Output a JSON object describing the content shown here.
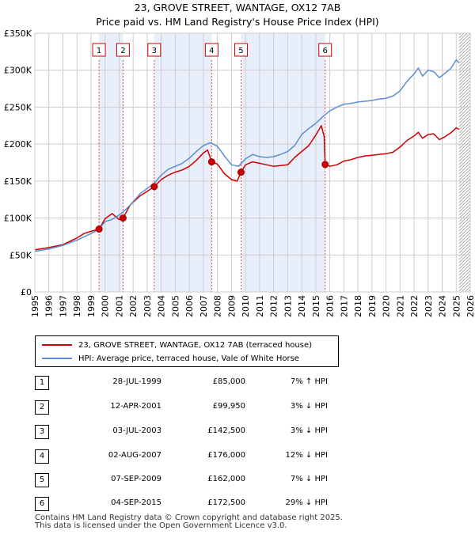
{
  "chart_data": {
    "type": "line",
    "title": "23, GROVE STREET, WANTAGE, OX12 7AB",
    "subtitle": "Price paid vs. HM Land Registry's House Price Index (HPI)",
    "ylim": [
      0,
      350000
    ],
    "xlim": [
      1995,
      2026
    ],
    "y_ticks": [
      0,
      50000,
      100000,
      150000,
      200000,
      250000,
      300000,
      350000
    ],
    "y_tick_labels": [
      "£0",
      "£50K",
      "£100K",
      "£150K",
      "£200K",
      "£250K",
      "£300K",
      "£350K"
    ],
    "x_ticks": [
      1995,
      1996,
      1997,
      1998,
      1999,
      2000,
      2001,
      2002,
      2003,
      2004,
      2005,
      2006,
      2007,
      2008,
      2009,
      2010,
      2011,
      2012,
      2013,
      2014,
      2015,
      2016,
      2017,
      2018,
      2019,
      2020,
      2021,
      2022,
      2023,
      2024,
      2025,
      2026
    ],
    "x_tick_labels": [
      "1995",
      "1996",
      "1997",
      "1998",
      "1999",
      "2000",
      "2001",
      "2002",
      "2003",
      "2004",
      "2005",
      "2006",
      "2007",
      "2008",
      "2009",
      "2010",
      "2011",
      "2012",
      "2013",
      "2014",
      "2015",
      "2016",
      "2017",
      "2018",
      "2019",
      "2020",
      "2021",
      "2022",
      "2023",
      "2024",
      "2025",
      "2026"
    ],
    "grid": true,
    "data_end_year": 2025.2,
    "series": [
      {
        "name": "23, GROVE STREET, WANTAGE, OX12 7AB (terraced house)",
        "color": "#cc0000",
        "x": [
          1995.0,
          1996.0,
          1997.0,
          1998.0,
          1998.5,
          1999.0,
          1999.57,
          2000.0,
          2000.5,
          2001.0,
          2001.28,
          2001.8,
          2002.5,
          2003.0,
          2003.5,
          2004.0,
          2004.5,
          2005.0,
          2005.5,
          2006.0,
          2006.5,
          2007.0,
          2007.3,
          2007.59,
          2008.0,
          2008.5,
          2009.0,
          2009.4,
          2009.68,
          2010.0,
          2010.5,
          2011.0,
          2011.5,
          2012.0,
          2012.5,
          2013.0,
          2013.5,
          2014.0,
          2014.5,
          2015.0,
          2015.4,
          2015.6,
          2015.67,
          2016.0,
          2016.5,
          2017.0,
          2017.5,
          2018.0,
          2018.5,
          2019.0,
          2019.5,
          2020.0,
          2020.5,
          2021.0,
          2021.5,
          2022.0,
          2022.3,
          2022.6,
          2023.0,
          2023.4,
          2023.8,
          2024.2,
          2024.6,
          2025.0,
          2025.2
        ],
        "values": [
          57000,
          60000,
          64000,
          73000,
          79000,
          82000,
          85000,
          99000,
          106000,
          98000,
          99950,
          118000,
          130000,
          136000,
          142500,
          152000,
          158000,
          162000,
          165000,
          170000,
          178000,
          188000,
          192000,
          176000,
          173000,
          160000,
          152000,
          150000,
          162000,
          172000,
          176000,
          174000,
          172000,
          170000,
          171000,
          172000,
          182000,
          190000,
          198000,
          212000,
          225000,
          210000,
          172500,
          170000,
          172000,
          177000,
          179000,
          182000,
          184000,
          185000,
          186000,
          187000,
          189000,
          196000,
          205000,
          211000,
          216000,
          208000,
          213000,
          214000,
          206000,
          210000,
          215000,
          222000,
          220000
        ]
      },
      {
        "name": "HPI: Average price, terraced house, Vale of White Horse",
        "color": "#5b8fd1",
        "x": [
          1995.0,
          1996.0,
          1997.0,
          1998.0,
          1999.0,
          1999.57,
          2000.0,
          2000.5,
          2001.0,
          2001.5,
          2002.0,
          2002.5,
          2003.0,
          2003.5,
          2004.0,
          2004.5,
          2005.0,
          2005.5,
          2006.0,
          2006.5,
          2007.0,
          2007.5,
          2008.0,
          2008.5,
          2009.0,
          2009.5,
          2010.0,
          2010.5,
          2011.0,
          2011.5,
          2012.0,
          2012.5,
          2013.0,
          2013.5,
          2014.0,
          2014.5,
          2015.0,
          2015.5,
          2016.0,
          2016.5,
          2017.0,
          2017.5,
          2018.0,
          2018.5,
          2019.0,
          2019.5,
          2020.0,
          2020.5,
          2021.0,
          2021.5,
          2022.0,
          2022.3,
          2022.6,
          2023.0,
          2023.4,
          2023.8,
          2024.2,
          2024.6,
          2025.0,
          2025.2
        ],
        "values": [
          55000,
          58000,
          63000,
          70000,
          79000,
          85000,
          95000,
          98000,
          104000,
          112000,
          122000,
          133000,
          140000,
          147000,
          158000,
          166000,
          170000,
          174000,
          181000,
          190000,
          198000,
          202000,
          197000,
          184000,
          172000,
          170000,
          180000,
          186000,
          183000,
          182000,
          183000,
          186000,
          190000,
          198000,
          213000,
          221000,
          228000,
          237000,
          245000,
          250000,
          254000,
          255000,
          257000,
          258000,
          259000,
          261000,
          262000,
          265000,
          272000,
          285000,
          295000,
          303000,
          292000,
          300000,
          298000,
          290000,
          296000,
          302000,
          314000,
          310000
        ]
      }
    ],
    "sales": [
      {
        "num": "1",
        "x": 1999.57,
        "value": 85000
      },
      {
        "num": "2",
        "x": 2001.28,
        "value": 99950
      },
      {
        "num": "3",
        "x": 2003.5,
        "value": 142500
      },
      {
        "num": "4",
        "x": 2007.59,
        "value": 176000
      },
      {
        "num": "5",
        "x": 2009.68,
        "value": 162000
      },
      {
        "num": "6",
        "x": 2015.67,
        "value": 172500
      }
    ],
    "shaded_ranges": [
      [
        1999.57,
        2001.28
      ],
      [
        2003.5,
        2007.59
      ],
      [
        2009.68,
        2015.67
      ]
    ],
    "colors": {
      "price": "#cc0000",
      "hpi": "#5b8fd1",
      "shade": "#e8eefa",
      "grid": "#cccccc",
      "hatch": "#999999"
    }
  },
  "legend": {
    "price_label": "23, GROVE STREET, WANTAGE, OX12 7AB (terraced house)",
    "hpi_label": "HPI: Average price, terraced house, Vale of White Horse"
  },
  "sales_table": [
    {
      "num": "1",
      "date": "28-JUL-1999",
      "price": "£85,000",
      "hpi": "7% ↑ HPI"
    },
    {
      "num": "2",
      "date": "12-APR-2001",
      "price": "£99,950",
      "hpi": "3% ↓ HPI"
    },
    {
      "num": "3",
      "date": "03-JUL-2003",
      "price": "£142,500",
      "hpi": "3% ↓ HPI"
    },
    {
      "num": "4",
      "date": "02-AUG-2007",
      "price": "£176,000",
      "hpi": "12% ↓ HPI"
    },
    {
      "num": "5",
      "date": "07-SEP-2009",
      "price": "£162,000",
      "hpi": "7% ↓ HPI"
    },
    {
      "num": "6",
      "date": "04-SEP-2015",
      "price": "£172,500",
      "hpi": "29% ↓ HPI"
    }
  ],
  "footer": {
    "line1": "Contains HM Land Registry data © Crown copyright and database right 2025.",
    "line2": "This data is licensed under the Open Government Licence v3.0."
  }
}
